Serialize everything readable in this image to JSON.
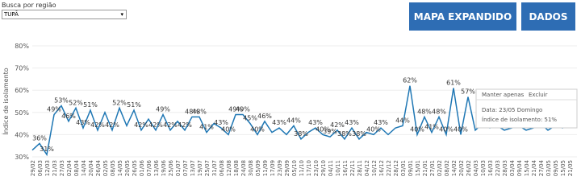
{
  "filter": {
    "label": "Busca por região",
    "value": "TUPÃ"
  },
  "buttons": [
    "MAPA EXPANDIDO",
    "DADOS"
  ],
  "chart_data": {
    "type": "line",
    "y_label": "Índice de isolamento",
    "color": "#1f77b4",
    "grid": true,
    "ylim": [
      30,
      80
    ],
    "yticks": [
      {
        "value": 30,
        "label": "30%"
      },
      {
        "value": 40,
        "label": "40%"
      },
      {
        "value": 50,
        "label": "50%"
      },
      {
        "value": 60,
        "label": "60%"
      },
      {
        "value": 70,
        "label": "70%"
      },
      {
        "value": 80,
        "label": "80%"
      }
    ],
    "categories": [
      "29/02",
      "06/03",
      "12/03",
      "21/03",
      "27/03",
      "02/04",
      "08/04",
      "14/04",
      "20/04",
      "26/04",
      "02/05",
      "08/05",
      "14/05",
      "20/05",
      "26/05",
      "01/06",
      "07/06",
      "13/06",
      "19/06",
      "25/06",
      "01/07",
      "07/07",
      "13/07",
      "19/07",
      "25/07",
      "31/07",
      "06/08",
      "12/08",
      "18/08",
      "24/08",
      "30/08",
      "05/09",
      "11/09",
      "17/09",
      "23/09",
      "29/09",
      "05/10",
      "11/10",
      "17/10",
      "23/10",
      "29/10",
      "04/11",
      "10/11",
      "16/11",
      "22/11",
      "28/11",
      "04/12",
      "10/12",
      "16/12",
      "22/12",
      "28/12",
      "03/01",
      "09/01",
      "15/01",
      "21/01",
      "27/01",
      "02/02",
      "08/02",
      "14/02",
      "20/02",
      "26/02",
      "04/03",
      "10/03",
      "16/03",
      "22/03",
      "28/03",
      "03/04",
      "09/04",
      "15/04",
      "21/04",
      "27/04",
      "03/05",
      "09/05",
      "15/05",
      "21/05"
    ],
    "values": [
      33,
      36,
      31,
      49,
      53,
      46,
      52,
      43,
      51,
      42,
      50,
      42,
      52,
      44,
      51,
      42,
      47,
      42,
      49,
      42,
      46,
      42,
      48,
      48,
      41,
      45,
      43,
      40,
      49,
      49,
      45,
      40,
      46,
      41,
      43,
      40,
      44,
      38,
      41,
      43,
      40,
      39,
      42,
      38,
      43,
      38,
      41,
      40,
      43,
      40,
      43,
      44,
      62,
      40,
      48,
      41,
      48,
      40,
      61,
      40,
      57,
      42,
      45,
      43,
      44,
      42,
      43,
      44,
      42,
      43,
      45,
      42,
      44,
      43,
      51
    ],
    "value_labels": [
      null,
      "36%",
      "31%",
      "49%",
      "53%",
      "46%",
      "52%",
      "43%",
      "51%",
      "42%",
      null,
      "42%",
      "52%",
      null,
      "51%",
      "42%",
      null,
      "42%",
      "49%",
      "42%",
      null,
      "42%",
      "48%",
      "48%",
      "41%",
      null,
      "43%",
      "40%",
      "49%",
      "49%",
      "45%",
      "40%",
      "46%",
      null,
      "43%",
      null,
      "44%",
      "38%",
      null,
      "43%",
      "40%",
      "39%",
      "42%",
      "38%",
      "43%",
      "38%",
      null,
      "40%",
      "43%",
      null,
      null,
      "44%",
      "62%",
      "40%",
      "48%",
      "41%",
      "48%",
      "40%",
      "61%",
      "40%",
      "57%",
      null,
      null,
      null,
      null,
      null,
      null,
      null,
      null,
      null,
      null,
      null,
      null,
      null,
      null
    ]
  },
  "tooltip": {
    "actions": [
      "Manter apenas",
      "Excluir"
    ],
    "date": "Data: 23/05 Domingo",
    "value": "Índice de isolamento: 51%"
  }
}
